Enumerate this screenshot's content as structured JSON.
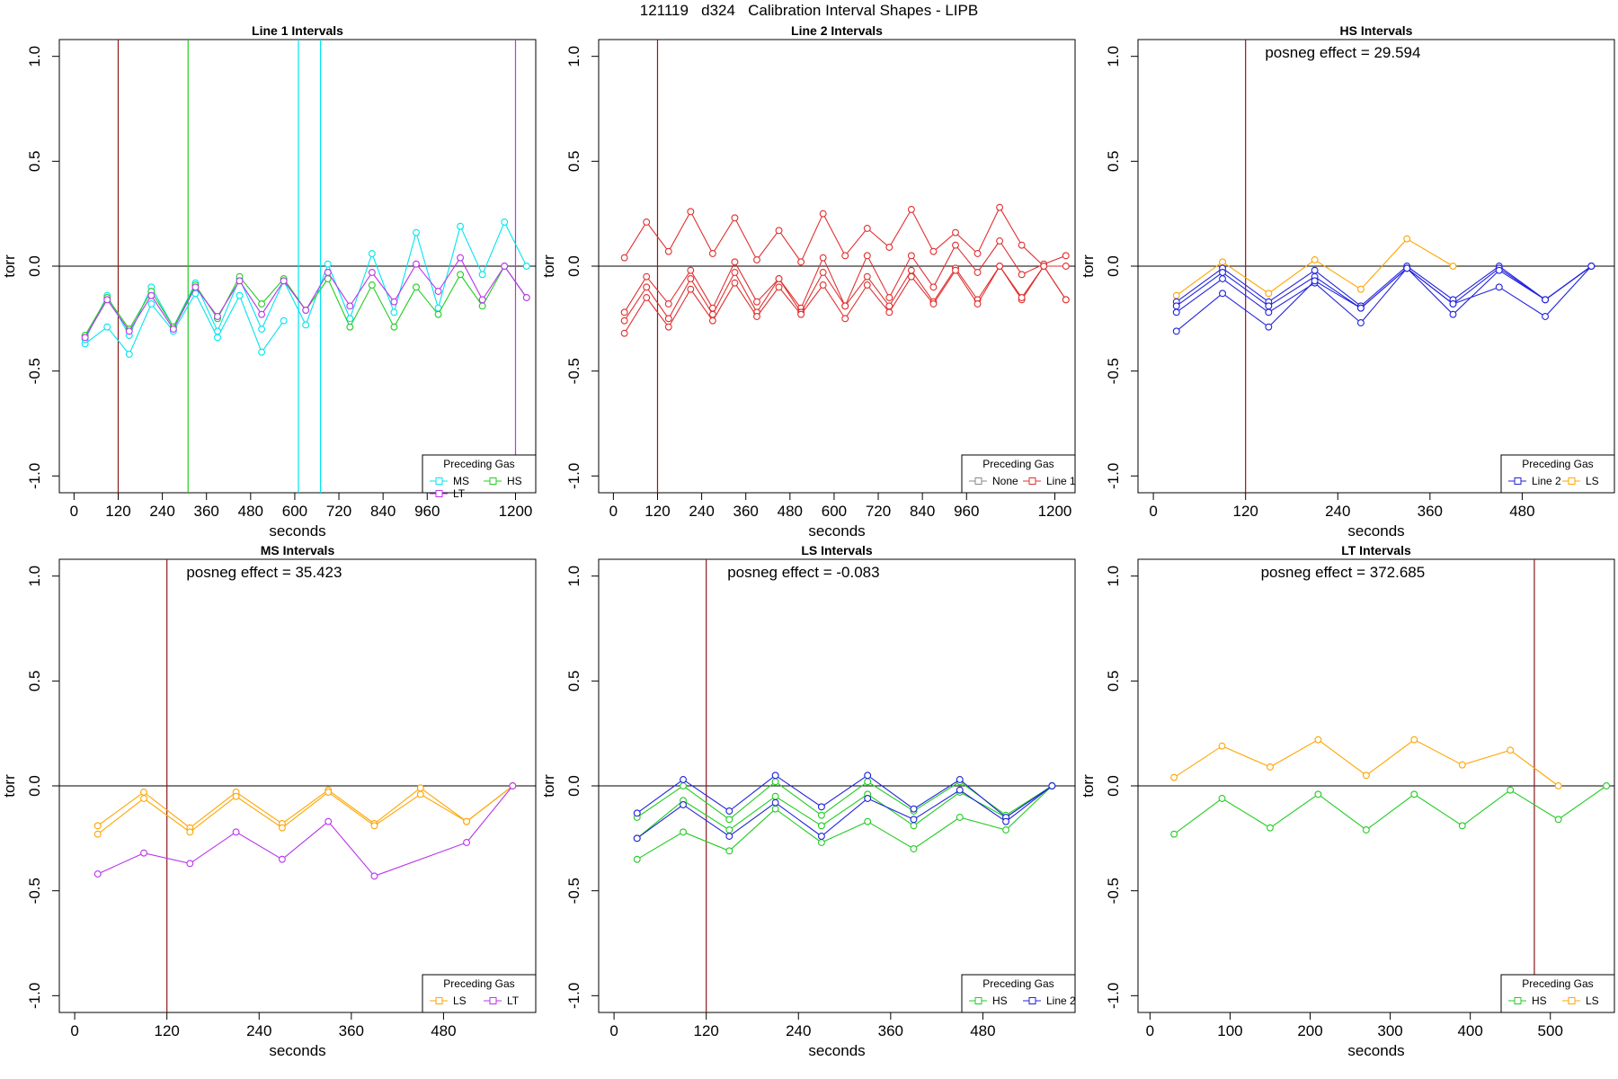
{
  "figure": {
    "title": "121119   d324   Calibration Interval Shapes - LIPB"
  },
  "colors": {
    "MS": "#00e5ee",
    "HS": "#22cc22",
    "LT": "#bb33ee",
    "None": "#888888",
    "Line 1": "#e03030",
    "Line 2": "#2222dd",
    "LS": "#ffa500",
    "boundary": "#8b1a1a"
  },
  "chart_data": [
    {
      "type": "line",
      "title": "Line 1 Intervals",
      "xlabel": "seconds",
      "ylabel": "torr",
      "xlim": [
        -40,
        1255
      ],
      "ylim": [
        -1.08,
        1.08
      ],
      "xticks": [
        0,
        120,
        240,
        360,
        480,
        600,
        720,
        840,
        960,
        1200
      ],
      "yticks": [
        -1.0,
        -0.5,
        0.0,
        0.5,
        1.0
      ],
      "annotation": "",
      "vlines": [
        {
          "x": 120,
          "color": "#8b1a1a"
        },
        {
          "x": 310,
          "color": "#22cc22"
        },
        {
          "x": 610,
          "color": "#00e5ee"
        },
        {
          "x": 670,
          "color": "#00e5ee"
        },
        {
          "x": 1200,
          "color": "#bb33ee"
        }
      ],
      "legend": {
        "title": "Preceding Gas",
        "entries": [
          "MS",
          "HS",
          "LT"
        ],
        "columns": 2
      },
      "series": [
        {
          "name": "MS",
          "x": [
            30,
            90,
            150,
            210,
            270,
            330,
            390,
            450,
            510,
            570
          ],
          "y": [
            -0.37,
            -0.29,
            -0.42,
            -0.18,
            -0.31,
            -0.13,
            -0.34,
            -0.14,
            -0.41,
            -0.26
          ]
        },
        {
          "name": "MS",
          "x": [
            30,
            90,
            150,
            210,
            270,
            330,
            390,
            450,
            510,
            570,
            630,
            690,
            750,
            810,
            870,
            930,
            990,
            1050,
            1110,
            1170,
            1230
          ],
          "y": [
            -0.35,
            -0.14,
            -0.33,
            -0.1,
            -0.29,
            -0.08,
            -0.31,
            -0.06,
            -0.3,
            -0.07,
            -0.28,
            0.01,
            -0.25,
            0.06,
            -0.22,
            0.16,
            -0.2,
            0.19,
            -0.04,
            0.21,
            0.0
          ]
        },
        {
          "name": "HS",
          "x": [
            30,
            90,
            150,
            210,
            270,
            330,
            390,
            450,
            510,
            570,
            630,
            690,
            750,
            810,
            870,
            930,
            990,
            1050,
            1110,
            1170,
            1230
          ],
          "y": [
            -0.33,
            -0.15,
            -0.3,
            -0.12,
            -0.29,
            -0.09,
            -0.25,
            -0.05,
            -0.18,
            -0.06,
            -0.21,
            -0.06,
            -0.29,
            -0.09,
            -0.29,
            -0.1,
            -0.23,
            -0.04,
            -0.19,
            0.0,
            -0.15
          ]
        },
        {
          "name": "LT",
          "x": [
            30,
            90,
            150,
            210,
            270,
            330,
            390,
            450,
            510,
            570,
            630,
            690,
            750,
            810,
            870,
            930,
            990,
            1050,
            1110,
            1170,
            1230
          ],
          "y": [
            -0.34,
            -0.16,
            -0.31,
            -0.14,
            -0.3,
            -0.1,
            -0.24,
            -0.07,
            -0.23,
            -0.07,
            -0.21,
            -0.03,
            -0.19,
            -0.03,
            -0.17,
            0.01,
            -0.12,
            0.04,
            -0.16,
            0.0,
            -0.15
          ]
        }
      ]
    },
    {
      "type": "line",
      "title": "Line 2 Intervals",
      "xlabel": "seconds",
      "ylabel": "torr",
      "xlim": [
        -40,
        1255
      ],
      "ylim": [
        -1.08,
        1.08
      ],
      "xticks": [
        0,
        120,
        240,
        360,
        480,
        600,
        720,
        840,
        960,
        1200
      ],
      "yticks": [
        -1.0,
        -0.5,
        0.0,
        0.5,
        1.0
      ],
      "annotation": "",
      "vlines": [
        {
          "x": 120,
          "color": "#8b1a1a"
        }
      ],
      "legend": {
        "title": "Preceding Gas",
        "entries": [
          "None",
          "Line 1"
        ],
        "columns": 2
      },
      "series": [
        {
          "name": "Line 1",
          "x": [
            30,
            90,
            150,
            210,
            270,
            330,
            390,
            450,
            510,
            570,
            630,
            690,
            750,
            810,
            870,
            930,
            990,
            1050,
            1110,
            1170,
            1230
          ],
          "y": [
            0.04,
            0.21,
            0.07,
            0.26,
            0.06,
            0.23,
            0.03,
            0.17,
            0.02,
            0.25,
            0.05,
            0.18,
            0.09,
            0.27,
            0.07,
            0.16,
            0.06,
            0.28,
            0.1,
            0.0,
            0.0
          ]
        },
        {
          "name": "Line 1",
          "x": [
            30,
            90,
            150,
            210,
            270,
            330,
            390,
            450,
            510,
            570,
            630,
            690,
            750,
            810,
            870,
            930,
            990,
            1050,
            1110,
            1170,
            1230
          ],
          "y": [
            -0.22,
            -0.05,
            -0.18,
            -0.02,
            -0.2,
            0.02,
            -0.17,
            -0.06,
            -0.2,
            0.04,
            -0.19,
            0.05,
            -0.15,
            0.05,
            -0.1,
            0.1,
            -0.03,
            0.12,
            -0.04,
            0.01,
            0.05
          ]
        },
        {
          "name": "Line 1",
          "x": [
            30,
            90,
            150,
            210,
            270,
            330,
            390,
            450,
            510,
            570,
            630,
            690,
            750,
            810,
            870,
            930,
            990,
            1050,
            1110,
            1170,
            1230
          ],
          "y": [
            -0.26,
            -0.1,
            -0.25,
            -0.06,
            -0.23,
            -0.03,
            -0.22,
            -0.06,
            -0.22,
            -0.03,
            -0.19,
            -0.05,
            -0.19,
            -0.02,
            -0.17,
            -0.01,
            -0.16,
            0.0,
            -0.16,
            0.0,
            -0.16
          ]
        },
        {
          "name": "Line 1",
          "x": [
            30,
            90,
            150,
            210,
            270,
            330,
            390,
            450,
            510,
            570,
            630,
            690,
            750,
            810,
            870,
            930,
            990,
            1050,
            1110,
            1170,
            1230
          ],
          "y": [
            -0.32,
            -0.15,
            -0.29,
            -0.11,
            -0.26,
            -0.08,
            -0.24,
            -0.1,
            -0.23,
            -0.09,
            -0.25,
            -0.09,
            -0.22,
            -0.05,
            -0.18,
            -0.02,
            -0.18,
            0.0,
            -0.15,
            0.0,
            -0.16
          ]
        }
      ]
    },
    {
      "type": "line",
      "title": "HS Intervals",
      "xlabel": "seconds",
      "ylabel": "torr",
      "xlim": [
        -20,
        600
      ],
      "ylim": [
        -1.08,
        1.08
      ],
      "xticks": [
        0,
        120,
        240,
        360,
        480
      ],
      "yticks": [
        -1.0,
        -0.5,
        0.0,
        0.5,
        1.0
      ],
      "annotation": "posneg effect = 29.594",
      "vlines": [
        {
          "x": 120,
          "color": "#8b1a1a"
        }
      ],
      "legend": {
        "title": "Preceding Gas",
        "entries": [
          "Line 2",
          "LS"
        ],
        "columns": 2
      },
      "series": [
        {
          "name": "LS",
          "x": [
            30,
            90,
            150,
            210,
            270,
            330,
            390
          ],
          "y": [
            -0.14,
            0.02,
            -0.13,
            0.03,
            -0.11,
            0.13,
            0.0
          ]
        },
        {
          "name": "Line 2",
          "x": [
            30,
            90,
            150,
            210,
            270,
            330,
            390,
            450,
            510,
            570
          ],
          "y": [
            -0.17,
            -0.01,
            -0.17,
            -0.02,
            -0.19,
            0.0,
            -0.16,
            0.0,
            -0.16,
            0.0
          ]
        },
        {
          "name": "Line 2",
          "x": [
            30,
            90,
            150,
            210,
            270,
            330,
            390,
            450,
            510,
            570
          ],
          "y": [
            -0.19,
            -0.03,
            -0.19,
            -0.05,
            -0.2,
            -0.01,
            -0.18,
            -0.01,
            -0.16,
            0.0
          ]
        },
        {
          "name": "Line 2",
          "x": [
            30,
            90,
            150,
            210,
            270,
            330,
            390,
            450,
            510,
            570
          ],
          "y": [
            -0.22,
            -0.06,
            -0.22,
            -0.08,
            -0.27,
            -0.01,
            -0.23,
            -0.02,
            -0.16,
            0.0
          ]
        },
        {
          "name": "Line 2",
          "x": [
            30,
            90,
            150,
            210,
            270,
            330,
            390,
            450,
            510,
            570
          ],
          "y": [
            -0.31,
            -0.13,
            -0.29,
            -0.07,
            -0.2,
            -0.01,
            -0.18,
            -0.1,
            -0.24,
            0.0
          ]
        }
      ]
    },
    {
      "type": "line",
      "title": "MS Intervals",
      "xlabel": "seconds",
      "ylabel": "torr",
      "xlim": [
        -20,
        600
      ],
      "ylim": [
        -1.08,
        1.08
      ],
      "xticks": [
        0,
        120,
        240,
        360,
        480
      ],
      "yticks": [
        -1.0,
        -0.5,
        0.0,
        0.5,
        1.0
      ],
      "annotation": "posneg effect = 35.423",
      "vlines": [
        {
          "x": 120,
          "color": "#8b1a1a"
        }
      ],
      "legend": {
        "title": "Preceding Gas",
        "entries": [
          "LS",
          "LT"
        ],
        "columns": 2
      },
      "series": [
        {
          "name": "LS",
          "x": [
            30,
            90,
            150,
            210,
            270,
            330,
            390,
            450,
            510,
            570
          ],
          "y": [
            -0.19,
            -0.03,
            -0.2,
            -0.03,
            -0.18,
            -0.02,
            -0.18,
            -0.01,
            -0.17,
            0.0
          ]
        },
        {
          "name": "LS",
          "x": [
            30,
            90,
            150,
            210,
            270,
            330,
            390,
            450,
            510,
            570
          ],
          "y": [
            -0.23,
            -0.06,
            -0.22,
            -0.05,
            -0.2,
            -0.03,
            -0.19,
            -0.04,
            -0.17,
            0.0
          ]
        },
        {
          "name": "LT",
          "x": [
            30,
            90,
            150,
            210,
            270,
            330,
            390,
            510,
            570
          ],
          "y": [
            -0.42,
            -0.32,
            -0.37,
            -0.22,
            -0.35,
            -0.17,
            -0.43,
            -0.27,
            0.0
          ]
        }
      ]
    },
    {
      "type": "line",
      "title": "LS Intervals",
      "xlabel": "seconds",
      "ylabel": "torr",
      "xlim": [
        -20,
        600
      ],
      "ylim": [
        -1.08,
        1.08
      ],
      "xticks": [
        0,
        120,
        240,
        360,
        480
      ],
      "yticks": [
        -1.0,
        -0.5,
        0.0,
        0.5,
        1.0
      ],
      "annotation": "posneg effect = -0.083",
      "vlines": [
        {
          "x": 120,
          "color": "#8b1a1a"
        }
      ],
      "legend": {
        "title": "Preceding Gas",
        "entries": [
          "HS",
          "Line 2"
        ],
        "columns": 2
      },
      "series": [
        {
          "name": "HS",
          "x": [
            30,
            90,
            150,
            210,
            270,
            330,
            390,
            450,
            510,
            570
          ],
          "y": [
            -0.35,
            -0.22,
            -0.31,
            -0.11,
            -0.27,
            -0.17,
            -0.3,
            -0.15,
            -0.21,
            0.0
          ]
        },
        {
          "name": "HS",
          "x": [
            30,
            90,
            150,
            210,
            270,
            330,
            390,
            450,
            510,
            570
          ],
          "y": [
            -0.25,
            -0.07,
            -0.21,
            -0.05,
            -0.19,
            -0.04,
            -0.19,
            -0.03,
            -0.15,
            0.0
          ]
        },
        {
          "name": "HS",
          "x": [
            30,
            90,
            150,
            210,
            270,
            330,
            390,
            450,
            510,
            570
          ],
          "y": [
            -0.15,
            0.0,
            -0.16,
            0.02,
            -0.14,
            0.02,
            -0.12,
            0.02,
            -0.14,
            0.0
          ]
        },
        {
          "name": "Line 2",
          "x": [
            30,
            90,
            150,
            210,
            270,
            330,
            390,
            450,
            510,
            570
          ],
          "y": [
            -0.13,
            0.03,
            -0.12,
            0.05,
            -0.1,
            0.05,
            -0.11,
            0.03,
            -0.15,
            0.0
          ]
        },
        {
          "name": "Line 2",
          "x": [
            30,
            90,
            150,
            210,
            270,
            330,
            390,
            450,
            510,
            570
          ],
          "y": [
            -0.25,
            -0.09,
            -0.24,
            -0.08,
            -0.24,
            -0.06,
            -0.16,
            -0.02,
            -0.17,
            0.0
          ]
        }
      ]
    },
    {
      "type": "line",
      "title": "LT Intervals",
      "xlabel": "seconds",
      "ylabel": "torr",
      "xlim": [
        -15,
        580
      ],
      "ylim": [
        -1.08,
        1.08
      ],
      "xticks": [
        0,
        100,
        200,
        300,
        400,
        500
      ],
      "yticks": [
        -1.0,
        -0.5,
        0.0,
        0.5,
        1.0
      ],
      "annotation": "posneg effect = 372.685",
      "vlines": [
        {
          "x": 480,
          "color": "#8b1a1a"
        }
      ],
      "legend": {
        "title": "Preceding Gas",
        "entries": [
          "HS",
          "LS"
        ],
        "columns": 2
      },
      "series": [
        {
          "name": "LS",
          "x": [
            30,
            90,
            150,
            210,
            270,
            330,
            390,
            450,
            510
          ],
          "y": [
            0.04,
            0.19,
            0.09,
            0.22,
            0.05,
            0.22,
            0.1,
            0.17,
            0.0
          ]
        },
        {
          "name": "HS",
          "x": [
            30,
            90,
            150,
            210,
            270,
            330,
            390,
            450,
            510,
            570
          ],
          "y": [
            -0.23,
            -0.06,
            -0.2,
            -0.04,
            -0.21,
            -0.04,
            -0.19,
            -0.02,
            -0.16,
            0.0
          ]
        }
      ]
    }
  ]
}
